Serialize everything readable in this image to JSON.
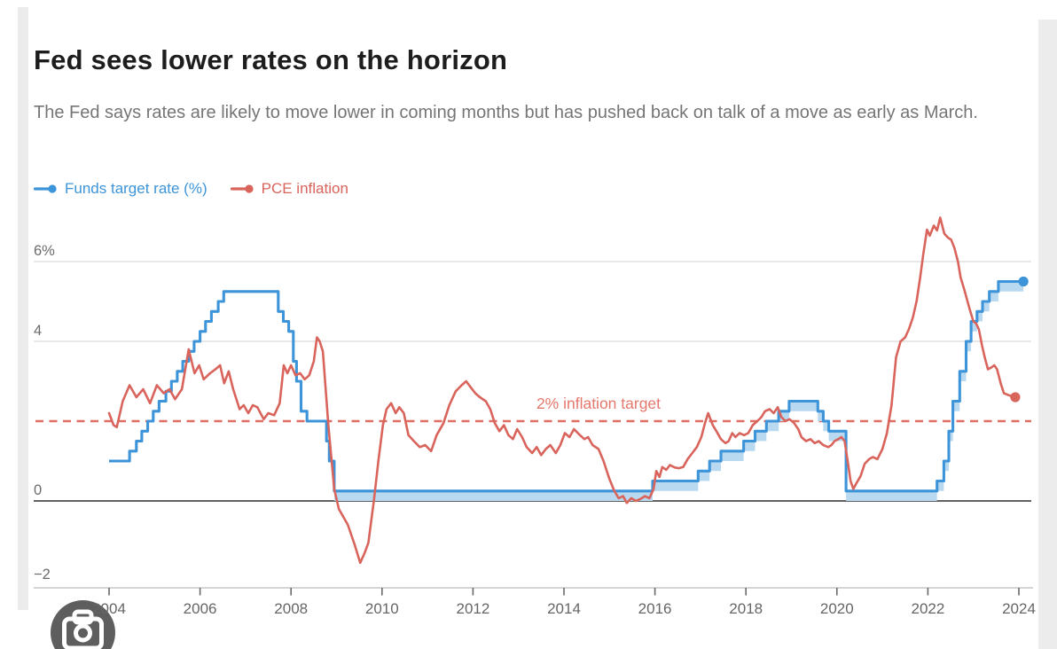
{
  "header": {
    "title": "Fed sees lower rates on the horizon",
    "subtitle": "The Fed says rates are likely to move lower in coming months but has pushed back on talk of a move as early as March."
  },
  "legend": {
    "items": [
      {
        "label": "Funds target rate (%)",
        "color": "#3d94d8"
      },
      {
        "label": "PCE inflation",
        "color": "#d9645c"
      }
    ]
  },
  "watermark": {
    "icon": "camera-icon",
    "color": "#5e5e5e"
  },
  "chart_data": {
    "type": "line",
    "title": "Fed sees lower rates on the horizon",
    "x_axis": {
      "ticks": [
        2004,
        2006,
        2008,
        2010,
        2012,
        2014,
        2016,
        2018,
        2020,
        2022,
        2024
      ],
      "range": [
        2003.35,
        2024.3
      ],
      "grid": false
    },
    "y_axis": {
      "unit": "%",
      "range": [
        -2.2,
        7.4
      ],
      "gridlines": [
        {
          "value": 6,
          "label": "6%"
        },
        {
          "value": 4,
          "label": "4"
        },
        {
          "value": 0,
          "label": "0",
          "emphasis": true
        },
        {
          "value": -2,
          "label": "−2",
          "label_only": true
        }
      ]
    },
    "target_line": {
      "value": 2,
      "label": "2% inflation target",
      "style": "dashed",
      "color": "#dc5f53",
      "label_x_year": 2014.76
    },
    "legend_position": "top-left",
    "series": [
      {
        "name": "Funds target rate (%)",
        "type": "step",
        "color": "#3d94d8",
        "band_color": "#b9d9f0",
        "band_width": 0.25,
        "band_from": 2008.95,
        "end_dot": true,
        "points": [
          [
            2004.0,
            1.0
          ],
          [
            2004.45,
            1.25
          ],
          [
            2004.6,
            1.5
          ],
          [
            2004.72,
            1.75
          ],
          [
            2004.85,
            2.0
          ],
          [
            2004.97,
            2.25
          ],
          [
            2005.1,
            2.5
          ],
          [
            2005.25,
            2.75
          ],
          [
            2005.37,
            3.0
          ],
          [
            2005.5,
            3.25
          ],
          [
            2005.62,
            3.5
          ],
          [
            2005.75,
            3.75
          ],
          [
            2005.87,
            4.0
          ],
          [
            2006.0,
            4.25
          ],
          [
            2006.12,
            4.5
          ],
          [
            2006.25,
            4.75
          ],
          [
            2006.4,
            5.0
          ],
          [
            2006.52,
            5.25
          ],
          [
            2007.72,
            4.75
          ],
          [
            2007.83,
            4.5
          ],
          [
            2007.95,
            4.25
          ],
          [
            2008.05,
            3.5
          ],
          [
            2008.12,
            3.0
          ],
          [
            2008.22,
            2.25
          ],
          [
            2008.35,
            2.0
          ],
          [
            2008.78,
            1.5
          ],
          [
            2008.84,
            1.0
          ],
          [
            2008.95,
            0.25
          ],
          [
            2015.95,
            0.5
          ],
          [
            2016.95,
            0.75
          ],
          [
            2017.2,
            1.0
          ],
          [
            2017.45,
            1.25
          ],
          [
            2017.95,
            1.5
          ],
          [
            2018.2,
            1.75
          ],
          [
            2018.45,
            2.0
          ],
          [
            2018.72,
            2.25
          ],
          [
            2018.95,
            2.5
          ],
          [
            2019.58,
            2.25
          ],
          [
            2019.7,
            2.0
          ],
          [
            2019.82,
            1.75
          ],
          [
            2020.2,
            0.25
          ],
          [
            2022.2,
            0.5
          ],
          [
            2022.35,
            1.0
          ],
          [
            2022.46,
            1.75
          ],
          [
            2022.55,
            2.5
          ],
          [
            2022.7,
            3.25
          ],
          [
            2022.84,
            4.0
          ],
          [
            2022.95,
            4.5
          ],
          [
            2023.08,
            4.75
          ],
          [
            2023.2,
            5.0
          ],
          [
            2023.35,
            5.25
          ],
          [
            2023.55,
            5.5
          ],
          [
            2024.1,
            5.5
          ]
        ]
      },
      {
        "name": "PCE inflation",
        "type": "line",
        "color": "#d9645c",
        "end_dot": true,
        "points": [
          [
            2004.0,
            2.2
          ],
          [
            2004.1,
            1.9
          ],
          [
            2004.17,
            1.85
          ],
          [
            2004.3,
            2.5
          ],
          [
            2004.45,
            2.9
          ],
          [
            2004.6,
            2.6
          ],
          [
            2004.75,
            2.8
          ],
          [
            2004.9,
            2.45
          ],
          [
            2005.05,
            2.9
          ],
          [
            2005.2,
            2.7
          ],
          [
            2005.33,
            2.8
          ],
          [
            2005.45,
            2.55
          ],
          [
            2005.6,
            2.8
          ],
          [
            2005.75,
            3.8
          ],
          [
            2005.88,
            3.2
          ],
          [
            2005.98,
            3.4
          ],
          [
            2006.08,
            3.05
          ],
          [
            2006.22,
            3.2
          ],
          [
            2006.34,
            3.3
          ],
          [
            2006.44,
            3.4
          ],
          [
            2006.53,
            2.95
          ],
          [
            2006.63,
            3.25
          ],
          [
            2006.73,
            2.8
          ],
          [
            2006.87,
            2.3
          ],
          [
            2006.96,
            2.4
          ],
          [
            2007.06,
            2.2
          ],
          [
            2007.16,
            2.4
          ],
          [
            2007.26,
            2.35
          ],
          [
            2007.4,
            2.05
          ],
          [
            2007.5,
            2.2
          ],
          [
            2007.63,
            2.15
          ],
          [
            2007.75,
            2.45
          ],
          [
            2007.84,
            3.4
          ],
          [
            2007.92,
            3.2
          ],
          [
            2008.0,
            3.4
          ],
          [
            2008.1,
            3.15
          ],
          [
            2008.2,
            3.2
          ],
          [
            2008.3,
            3.05
          ],
          [
            2008.4,
            3.15
          ],
          [
            2008.5,
            3.5
          ],
          [
            2008.57,
            4.1
          ],
          [
            2008.63,
            4.0
          ],
          [
            2008.7,
            3.75
          ],
          [
            2008.82,
            1.9
          ],
          [
            2008.95,
            0.3
          ],
          [
            2009.05,
            -0.2
          ],
          [
            2009.25,
            -0.6
          ],
          [
            2009.4,
            -1.1
          ],
          [
            2009.52,
            -1.55
          ],
          [
            2009.62,
            -1.3
          ],
          [
            2009.7,
            -1.05
          ],
          [
            2009.82,
            0.0
          ],
          [
            2009.92,
            1.0
          ],
          [
            2010.02,
            1.9
          ],
          [
            2010.1,
            2.3
          ],
          [
            2010.2,
            2.45
          ],
          [
            2010.3,
            2.2
          ],
          [
            2010.38,
            2.35
          ],
          [
            2010.48,
            2.2
          ],
          [
            2010.58,
            1.65
          ],
          [
            2010.7,
            1.5
          ],
          [
            2010.83,
            1.35
          ],
          [
            2010.95,
            1.4
          ],
          [
            2011.08,
            1.25
          ],
          [
            2011.2,
            1.65
          ],
          [
            2011.35,
            1.95
          ],
          [
            2011.48,
            2.4
          ],
          [
            2011.62,
            2.75
          ],
          [
            2011.75,
            2.9
          ],
          [
            2011.85,
            3.0
          ],
          [
            2011.95,
            2.85
          ],
          [
            2012.05,
            2.7
          ],
          [
            2012.15,
            2.6
          ],
          [
            2012.28,
            2.5
          ],
          [
            2012.38,
            2.3
          ],
          [
            2012.48,
            1.95
          ],
          [
            2012.58,
            1.75
          ],
          [
            2012.68,
            1.9
          ],
          [
            2012.78,
            1.65
          ],
          [
            2012.88,
            1.55
          ],
          [
            2012.97,
            1.8
          ],
          [
            2013.08,
            1.6
          ],
          [
            2013.18,
            1.35
          ],
          [
            2013.3,
            1.2
          ],
          [
            2013.4,
            1.35
          ],
          [
            2013.5,
            1.15
          ],
          [
            2013.6,
            1.3
          ],
          [
            2013.7,
            1.4
          ],
          [
            2013.82,
            1.2
          ],
          [
            2013.92,
            1.4
          ],
          [
            2014.02,
            1.7
          ],
          [
            2014.12,
            1.6
          ],
          [
            2014.22,
            1.8
          ],
          [
            2014.35,
            1.65
          ],
          [
            2014.45,
            1.55
          ],
          [
            2014.53,
            1.6
          ],
          [
            2014.63,
            1.4
          ],
          [
            2014.76,
            1.3
          ],
          [
            2014.87,
            1.0
          ],
          [
            2015.0,
            0.55
          ],
          [
            2015.1,
            0.27
          ],
          [
            2015.2,
            0.07
          ],
          [
            2015.3,
            0.12
          ],
          [
            2015.38,
            -0.05
          ],
          [
            2015.48,
            0.07
          ],
          [
            2015.58,
            0.0
          ],
          [
            2015.68,
            0.05
          ],
          [
            2015.78,
            0.12
          ],
          [
            2015.88,
            0.07
          ],
          [
            2015.97,
            0.3
          ],
          [
            2016.03,
            0.75
          ],
          [
            2016.1,
            0.6
          ],
          [
            2016.16,
            0.85
          ],
          [
            2016.25,
            0.78
          ],
          [
            2016.33,
            0.9
          ],
          [
            2016.43,
            0.84
          ],
          [
            2016.52,
            0.82
          ],
          [
            2016.62,
            0.85
          ],
          [
            2016.72,
            1.05
          ],
          [
            2016.82,
            1.2
          ],
          [
            2016.92,
            1.35
          ],
          [
            2017.02,
            1.6
          ],
          [
            2017.1,
            1.95
          ],
          [
            2017.17,
            2.2
          ],
          [
            2017.27,
            1.9
          ],
          [
            2017.35,
            1.75
          ],
          [
            2017.45,
            1.55
          ],
          [
            2017.55,
            1.45
          ],
          [
            2017.62,
            1.5
          ],
          [
            2017.7,
            1.7
          ],
          [
            2017.77,
            1.6
          ],
          [
            2017.86,
            1.7
          ],
          [
            2017.96,
            1.65
          ],
          [
            2018.05,
            1.7
          ],
          [
            2018.15,
            1.9
          ],
          [
            2018.25,
            2.0
          ],
          [
            2018.34,
            2.1
          ],
          [
            2018.42,
            2.25
          ],
          [
            2018.52,
            2.3
          ],
          [
            2018.61,
            2.2
          ],
          [
            2018.7,
            2.35
          ],
          [
            2018.78,
            2.1
          ],
          [
            2018.87,
            2.0
          ],
          [
            2018.96,
            2.05
          ],
          [
            2019.06,
            1.95
          ],
          [
            2019.15,
            1.8
          ],
          [
            2019.22,
            1.6
          ],
          [
            2019.32,
            1.5
          ],
          [
            2019.42,
            1.55
          ],
          [
            2019.51,
            1.45
          ],
          [
            2019.6,
            1.5
          ],
          [
            2019.7,
            1.4
          ],
          [
            2019.81,
            1.35
          ],
          [
            2019.88,
            1.4
          ],
          [
            2019.95,
            1.5
          ],
          [
            2020.03,
            1.55
          ],
          [
            2020.1,
            1.6
          ],
          [
            2020.17,
            1.5
          ],
          [
            2020.25,
            0.9
          ],
          [
            2020.3,
            0.5
          ],
          [
            2020.36,
            0.3
          ],
          [
            2020.43,
            0.45
          ],
          [
            2020.52,
            0.62
          ],
          [
            2020.61,
            0.93
          ],
          [
            2020.71,
            1.05
          ],
          [
            2020.79,
            1.1
          ],
          [
            2020.89,
            1.05
          ],
          [
            2021.0,
            1.3
          ],
          [
            2021.1,
            1.7
          ],
          [
            2021.2,
            2.4
          ],
          [
            2021.3,
            3.6
          ],
          [
            2021.4,
            4.0
          ],
          [
            2021.5,
            4.1
          ],
          [
            2021.58,
            4.3
          ],
          [
            2021.67,
            4.6
          ],
          [
            2021.75,
            5.0
          ],
          [
            2021.83,
            5.6
          ],
          [
            2021.9,
            6.2
          ],
          [
            2021.98,
            6.8
          ],
          [
            2022.04,
            6.65
          ],
          [
            2022.13,
            6.9
          ],
          [
            2022.2,
            6.78
          ],
          [
            2022.27,
            7.1
          ],
          [
            2022.36,
            6.7
          ],
          [
            2022.44,
            6.6
          ],
          [
            2022.51,
            6.55
          ],
          [
            2022.58,
            6.35
          ],
          [
            2022.66,
            6.0
          ],
          [
            2022.72,
            5.6
          ],
          [
            2022.8,
            5.3
          ],
          [
            2022.86,
            5.05
          ],
          [
            2022.92,
            4.8
          ],
          [
            2023.0,
            4.5
          ],
          [
            2023.06,
            4.45
          ],
          [
            2023.12,
            4.3
          ],
          [
            2023.19,
            3.9
          ],
          [
            2023.25,
            3.6
          ],
          [
            2023.32,
            3.3
          ],
          [
            2023.4,
            3.35
          ],
          [
            2023.46,
            3.4
          ],
          [
            2023.52,
            3.3
          ],
          [
            2023.6,
            2.95
          ],
          [
            2023.67,
            2.7
          ],
          [
            2023.78,
            2.65
          ],
          [
            2023.92,
            2.6
          ]
        ]
      }
    ]
  }
}
